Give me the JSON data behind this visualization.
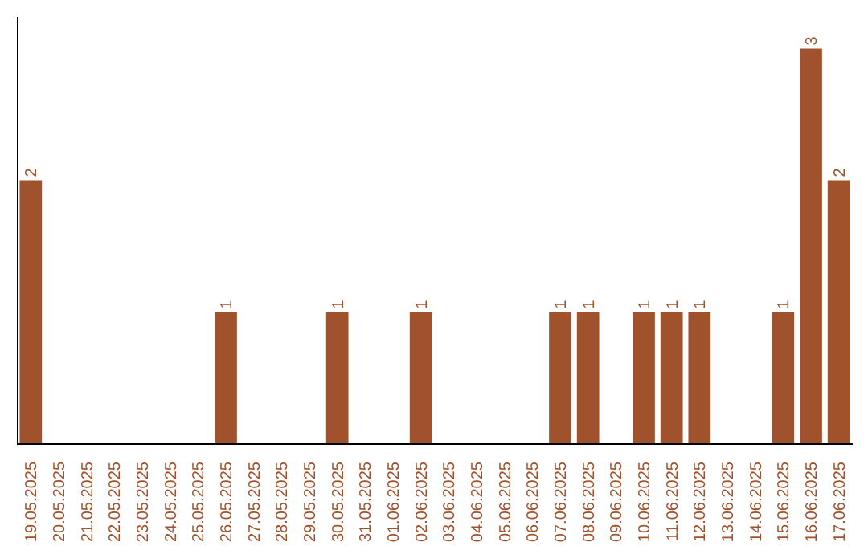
{
  "chart_data": {
    "type": "bar",
    "categories": [
      "19.05.2025",
      "20.05.2025",
      "21.05.2025",
      "22.05.2025",
      "23.05.2025",
      "24.05.2025",
      "25.05.2025",
      "26.05.2025",
      "27.05.2025",
      "28.05.2025",
      "29.05.2025",
      "30.05.2025",
      "31.05.2025",
      "01.06.2025",
      "02.06.2025",
      "03.06.2025",
      "04.06.2025",
      "05.06.2025",
      "06.06.2025",
      "07.06.2025",
      "08.06.2025",
      "09.06.2025",
      "10.06.2025",
      "11.06.2025",
      "12.06.2025",
      "13.06.2025",
      "14.06.2025",
      "15.06.2025",
      "16.06.2025",
      "17.06.2025"
    ],
    "values": [
      2,
      0,
      0,
      0,
      0,
      0,
      0,
      1,
      0,
      0,
      0,
      1,
      0,
      0,
      1,
      0,
      0,
      0,
      0,
      1,
      1,
      0,
      1,
      1,
      1,
      0,
      0,
      1,
      3,
      2
    ],
    "value_labels": [
      "2",
      null,
      null,
      null,
      null,
      null,
      null,
      "1",
      null,
      null,
      null,
      "1",
      null,
      null,
      "1",
      null,
      null,
      null,
      null,
      "1",
      "1",
      null,
      "1",
      "1",
      "1",
      null,
      null,
      "1",
      "3",
      "2"
    ],
    "color": "#a0522d",
    "grid": false,
    "tick_labels": "x"
  }
}
